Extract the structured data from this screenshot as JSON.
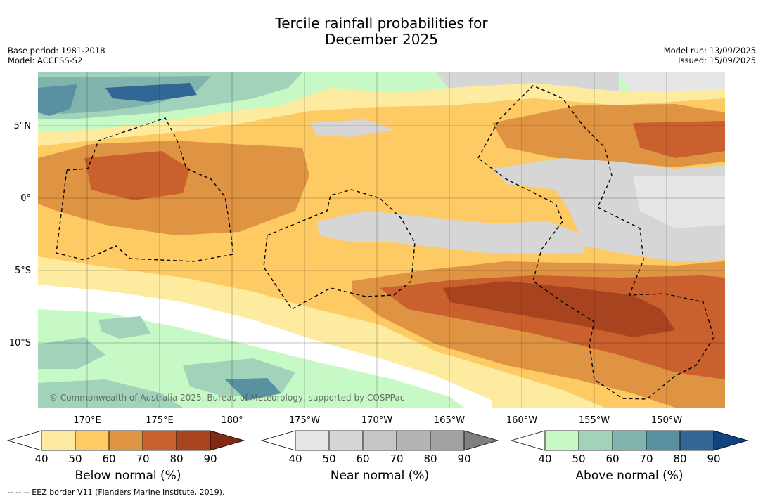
{
  "title_line1": "Tercile rainfall probabilities for",
  "title_line2": "December 2025",
  "base_period": "Base period: 1981-2018",
  "model": "Model: ACCESS-S2",
  "model_run": "Model run: 13/09/2025",
  "issued": "Issued: 15/09/2025",
  "lat_labels": [
    "5°N",
    "0°",
    "5°S",
    "10°S"
  ],
  "lon_labels": [
    "170°E",
    "175°E",
    "180°",
    "175°W",
    "170°W",
    "165°W",
    "160°W",
    "155°W",
    "150°W"
  ],
  "copyright": "© Commonwealth of Australia 2025, Bureau of Meteorology, supported by COSPPac",
  "colorbars": [
    {
      "label": "Below normal (%)",
      "ticks": [
        "40",
        "50",
        "60",
        "70",
        "80",
        "90"
      ],
      "colors": [
        "#ffffff",
        "#fdeba0",
        "#fdca63",
        "#df9443",
        "#c9602e",
        "#a84320",
        "#7f2a14"
      ]
    },
    {
      "label": "Near normal (%)",
      "ticks": [
        "40",
        "50",
        "60",
        "70",
        "80",
        "90"
      ],
      "colors": [
        "#ffffff",
        "#e6e6e6",
        "#d6d6d6",
        "#c6c6c6",
        "#b4b4b4",
        "#a2a2a2",
        "#7f7f7f"
      ]
    },
    {
      "label": "Above normal (%)",
      "ticks": [
        "40",
        "50",
        "60",
        "70",
        "80",
        "90"
      ],
      "colors": [
        "#ffffff",
        "#c6f9c6",
        "#a1d3bb",
        "#80b4ad",
        "#5a91a2",
        "#326695",
        "#13437f"
      ]
    }
  ],
  "footnote": "-- -- -- EEZ border V11 (Flanders Marine Institute, 2019)."
}
